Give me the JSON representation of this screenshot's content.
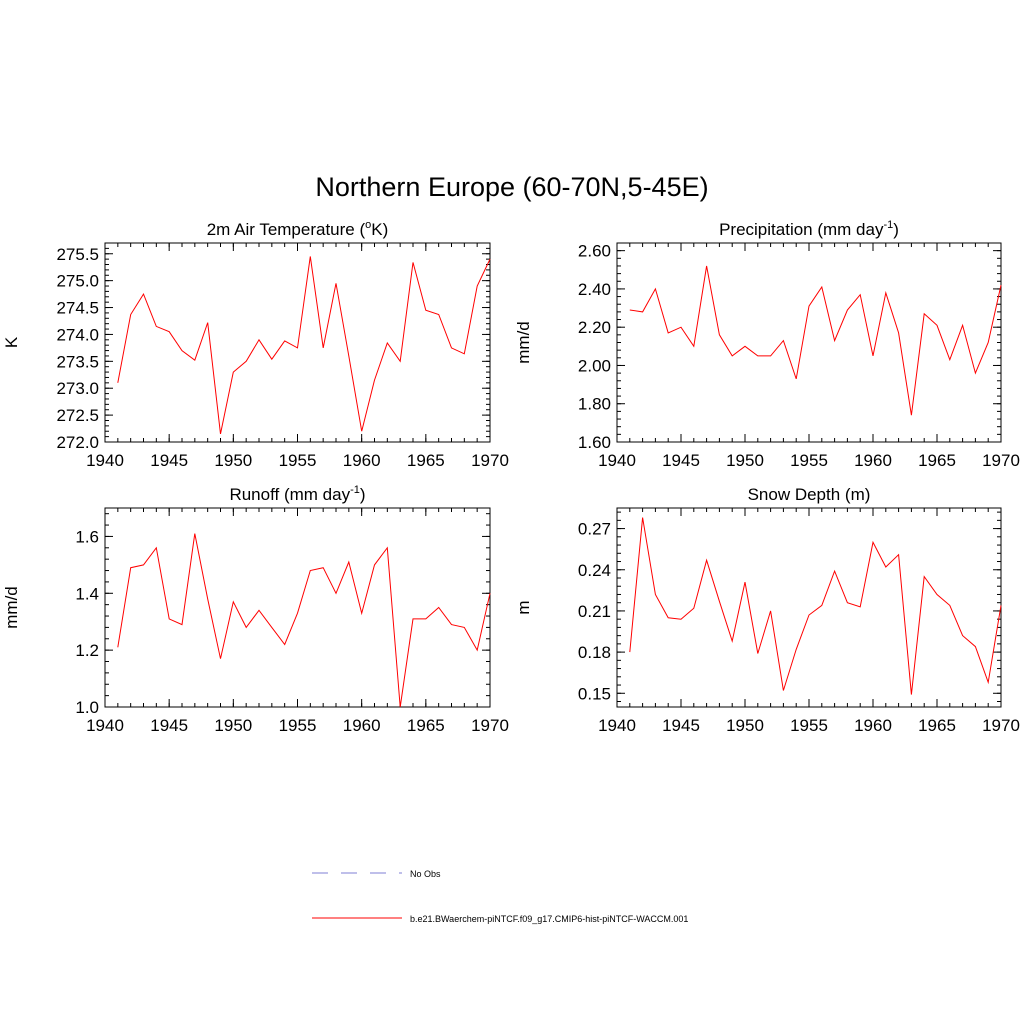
{
  "title": "Northern Europe (60-70N,5-45E)",
  "colors": {
    "series": "#ff0000",
    "obs": "#9999dd",
    "axis": "#000000"
  },
  "legend": {
    "obs_label": "No Obs",
    "model_label": "b.e21.BWaerchem-piNTCF.f09_g17.CMIP6-hist-piNTCF-WACCM.001"
  },
  "chart_data": [
    {
      "type": "line",
      "title": "2m Air Temperature (",
      "title_sup_prefix": "o",
      "title_suffix": "K)",
      "ylabel": "K",
      "xlim": [
        1940,
        1970
      ],
      "ylim": [
        272.0,
        275.7
      ],
      "yticks": [
        272.0,
        272.5,
        273.0,
        273.5,
        274.0,
        274.5,
        275.0,
        275.5
      ],
      "ytick_labels": [
        "272.0",
        "272.5",
        "273.0",
        "273.5",
        "274.0",
        "274.5",
        "275.0",
        "275.5"
      ],
      "xticks": [
        1940,
        1945,
        1950,
        1955,
        1960,
        1965,
        1970
      ],
      "xtick_labels": [
        "1940",
        "1945",
        "1950",
        "1955",
        "1960",
        "1965",
        "1970"
      ],
      "x": [
        1941,
        1942,
        1943,
        1944,
        1945,
        1946,
        1947,
        1948,
        1949,
        1950,
        1951,
        1952,
        1953,
        1954,
        1955,
        1956,
        1957,
        1958,
        1959,
        1960,
        1961,
        1962,
        1963,
        1964,
        1965,
        1966,
        1967,
        1968,
        1969,
        1970
      ],
      "series": [
        {
          "values": [
            273.1,
            274.37,
            274.75,
            274.15,
            274.05,
            273.7,
            273.52,
            274.22,
            272.15,
            273.3,
            273.5,
            273.9,
            273.54,
            273.88,
            273.75,
            275.45,
            273.75,
            274.95,
            273.6,
            272.2,
            273.15,
            273.84,
            273.5,
            275.34,
            274.45,
            274.37,
            273.75,
            273.64,
            274.9,
            275.4
          ]
        }
      ]
    },
    {
      "type": "line",
      "title": "Precipitation (mm day",
      "title_sup_prefix": "",
      "title_suffix": "",
      "title_sup": "-1",
      "title_end": ")",
      "ylabel": "mm/d",
      "xlim": [
        1940,
        1970
      ],
      "ylim": [
        1.6,
        2.64
      ],
      "yticks": [
        1.6,
        1.8,
        2.0,
        2.2,
        2.4,
        2.6
      ],
      "ytick_labels": [
        "1.60",
        "1.80",
        "2.00",
        "2.20",
        "2.40",
        "2.60"
      ],
      "xticks": [
        1940,
        1945,
        1950,
        1955,
        1960,
        1965,
        1970
      ],
      "xtick_labels": [
        "1940",
        "1945",
        "1950",
        "1955",
        "1960",
        "1965",
        "1970"
      ],
      "x": [
        1941,
        1942,
        1943,
        1944,
        1945,
        1946,
        1947,
        1948,
        1949,
        1950,
        1951,
        1952,
        1953,
        1954,
        1955,
        1956,
        1957,
        1958,
        1959,
        1960,
        1961,
        1962,
        1963,
        1964,
        1965,
        1966,
        1967,
        1968,
        1969,
        1970
      ],
      "series": [
        {
          "values": [
            2.29,
            2.28,
            2.4,
            2.17,
            2.2,
            2.1,
            2.52,
            2.16,
            2.05,
            2.1,
            2.05,
            2.05,
            2.13,
            1.93,
            2.31,
            2.41,
            2.13,
            2.29,
            2.37,
            2.05,
            2.38,
            2.17,
            1.74,
            2.27,
            2.21,
            2.03,
            2.21,
            1.96,
            2.12,
            2.42
          ]
        }
      ]
    },
    {
      "type": "line",
      "title": "Runoff (mm day",
      "title_sup": "-1",
      "title_end": ")",
      "ylabel": "mm/d",
      "xlim": [
        1940,
        1970
      ],
      "ylim": [
        1.0,
        1.7
      ],
      "yticks": [
        1.0,
        1.2,
        1.4,
        1.6
      ],
      "ytick_labels": [
        "1.0",
        "1.2",
        "1.4",
        "1.6"
      ],
      "xticks": [
        1940,
        1945,
        1950,
        1955,
        1960,
        1965,
        1970
      ],
      "xtick_labels": [
        "1940",
        "1945",
        "1950",
        "1955",
        "1960",
        "1965",
        "1970"
      ],
      "x": [
        1941,
        1942,
        1943,
        1944,
        1945,
        1946,
        1947,
        1948,
        1949,
        1950,
        1951,
        1952,
        1953,
        1954,
        1955,
        1956,
        1957,
        1958,
        1959,
        1960,
        1961,
        1962,
        1963,
        1964,
        1965,
        1966,
        1967,
        1968,
        1969,
        1970
      ],
      "series": [
        {
          "values": [
            1.21,
            1.49,
            1.5,
            1.56,
            1.31,
            1.29,
            1.61,
            1.38,
            1.17,
            1.37,
            1.28,
            1.34,
            1.28,
            1.22,
            1.33,
            1.48,
            1.49,
            1.4,
            1.51,
            1.33,
            1.5,
            1.56,
            1.0,
            1.31,
            1.31,
            1.35,
            1.29,
            1.28,
            1.2,
            1.4
          ]
        }
      ]
    },
    {
      "type": "line",
      "title": "Snow Depth (m)",
      "ylabel": "m",
      "xlim": [
        1940,
        1970
      ],
      "ylim": [
        0.14,
        0.285
      ],
      "yticks": [
        0.15,
        0.18,
        0.21,
        0.24,
        0.27
      ],
      "ytick_labels": [
        "0.15",
        "0.18",
        "0.21",
        "0.24",
        "0.27"
      ],
      "xticks": [
        1940,
        1945,
        1950,
        1955,
        1960,
        1965,
        1970
      ],
      "xtick_labels": [
        "1940",
        "1945",
        "1950",
        "1955",
        "1960",
        "1965",
        "1970"
      ],
      "x": [
        1941,
        1942,
        1943,
        1944,
        1945,
        1946,
        1947,
        1948,
        1949,
        1950,
        1951,
        1952,
        1953,
        1954,
        1955,
        1956,
        1957,
        1958,
        1959,
        1960,
        1961,
        1962,
        1963,
        1964,
        1965,
        1966,
        1967,
        1968,
        1969,
        1970
      ],
      "series": [
        {
          "values": [
            0.18,
            0.278,
            0.222,
            0.205,
            0.204,
            0.212,
            0.247,
            0.217,
            0.188,
            0.231,
            0.179,
            0.21,
            0.152,
            0.182,
            0.207,
            0.214,
            0.239,
            0.216,
            0.213,
            0.26,
            0.242,
            0.251,
            0.149,
            0.235,
            0.222,
            0.214,
            0.192,
            0.184,
            0.158,
            0.214
          ]
        }
      ]
    }
  ]
}
